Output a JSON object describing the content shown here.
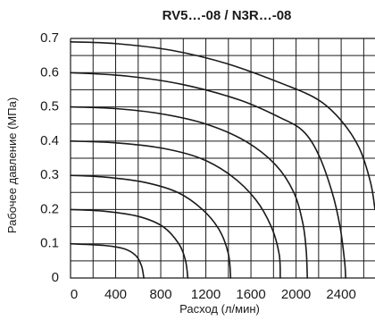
{
  "chart_data": {
    "type": "line",
    "title": "RV5…-08 / N3R…-08",
    "xlabel": "Расход (л/мин)",
    "ylabel": "Рабочее давление (МПа)",
    "xlim": [
      0,
      2700
    ],
    "ylim": [
      0,
      0.7
    ],
    "x_ticks": [
      "0",
      "400",
      "800",
      "1200",
      "1600",
      "2000",
      "2400"
    ],
    "y_ticks": [
      "0",
      "0.1",
      "0.2",
      "0.3",
      "0.4",
      "0.5",
      "0.6",
      "0.7"
    ],
    "grid": true,
    "series": [
      {
        "points": [
          [
            0,
            0.1
          ],
          [
            300,
            0.095
          ],
          [
            480,
            0.085
          ],
          [
            580,
            0.065
          ],
          [
            630,
            0.035
          ],
          [
            650,
            0
          ]
        ]
      },
      {
        "points": [
          [
            0,
            0.2
          ],
          [
            300,
            0.195
          ],
          [
            600,
            0.18
          ],
          [
            820,
            0.15
          ],
          [
            960,
            0.1
          ],
          [
            1020,
            0.05
          ],
          [
            1040,
            0
          ]
        ]
      },
      {
        "points": [
          [
            0,
            0.3
          ],
          [
            300,
            0.295
          ],
          [
            650,
            0.28
          ],
          [
            950,
            0.25
          ],
          [
            1170,
            0.2
          ],
          [
            1320,
            0.14
          ],
          [
            1400,
            0.07
          ],
          [
            1420,
            0
          ]
        ]
      },
      {
        "points": [
          [
            0,
            0.4
          ],
          [
            400,
            0.395
          ],
          [
            800,
            0.38
          ],
          [
            1150,
            0.35
          ],
          [
            1420,
            0.3
          ],
          [
            1640,
            0.23
          ],
          [
            1780,
            0.15
          ],
          [
            1850,
            0.07
          ],
          [
            1860,
            0
          ]
        ]
      },
      {
        "points": [
          [
            0,
            0.5
          ],
          [
            400,
            0.495
          ],
          [
            800,
            0.48
          ],
          [
            1200,
            0.45
          ],
          [
            1550,
            0.4
          ],
          [
            1820,
            0.33
          ],
          [
            1980,
            0.25
          ],
          [
            2060,
            0.16
          ],
          [
            2090,
            0.08
          ],
          [
            2100,
            0
          ]
        ]
      },
      {
        "points": [
          [
            0,
            0.6
          ],
          [
            500,
            0.59
          ],
          [
            1000,
            0.565
          ],
          [
            1500,
            0.52
          ],
          [
            1850,
            0.47
          ],
          [
            2060,
            0.43
          ],
          [
            2200,
            0.36
          ],
          [
            2320,
            0.25
          ],
          [
            2390,
            0.15
          ],
          [
            2430,
            0.05
          ],
          [
            2440,
            0
          ]
        ]
      },
      {
        "points": [
          [
            0,
            0.69
          ],
          [
            400,
            0.685
          ],
          [
            900,
            0.665
          ],
          [
            1400,
            0.625
          ],
          [
            1900,
            0.565
          ],
          [
            2200,
            0.52
          ],
          [
            2400,
            0.46
          ],
          [
            2560,
            0.38
          ],
          [
            2660,
            0.28
          ],
          [
            2700,
            0.2
          ]
        ]
      }
    ]
  }
}
